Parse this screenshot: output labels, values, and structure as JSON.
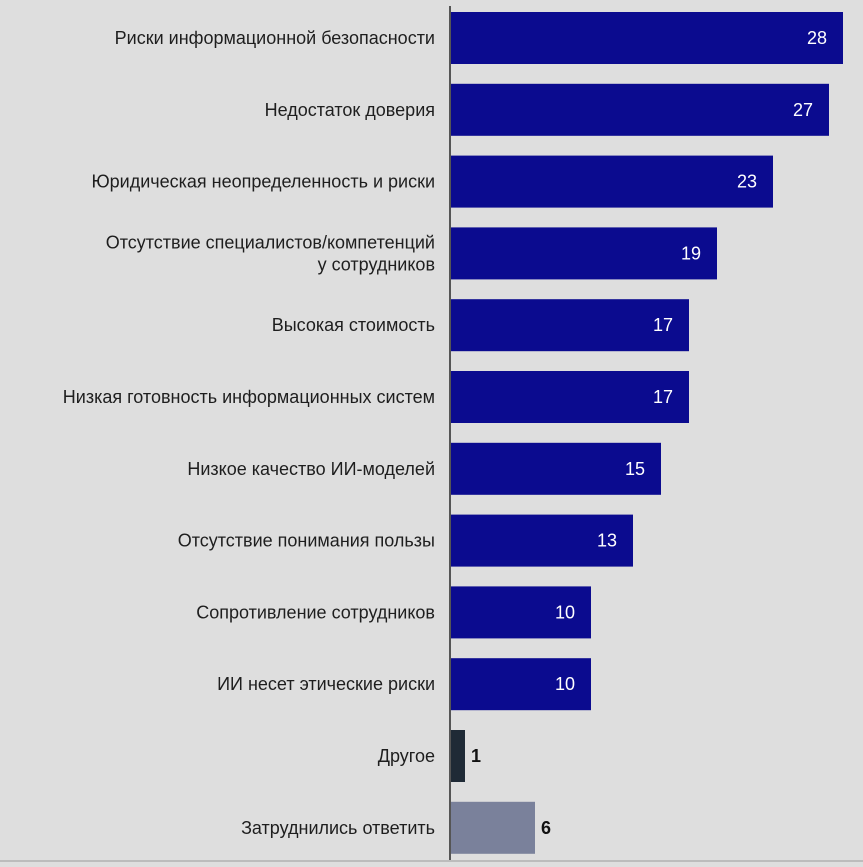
{
  "chart_data": {
    "type": "bar",
    "orientation": "horizontal",
    "categories": [
      [
        "Риски информационной безопасности"
      ],
      [
        "Недостаток доверия"
      ],
      [
        "Юридическая неопределенность и риски"
      ],
      [
        "Отсутствие специалистов/компетенций",
        "у сотрудников"
      ],
      [
        "Высокая стоимость"
      ],
      [
        "Низкая готовность информационных систем"
      ],
      [
        "Низкое качество ИИ-моделей"
      ],
      [
        "Отсутствие понимания пользы"
      ],
      [
        "Сопротивление сотрудников"
      ],
      [
        "ИИ несет этические риски"
      ],
      [
        "Другое"
      ],
      [
        "Затруднились ответить"
      ]
    ],
    "values": [
      28,
      27,
      23,
      19,
      17,
      17,
      15,
      13,
      10,
      10,
      1,
      6
    ],
    "bar_colors": [
      "#0b0b8f",
      "#0b0b8f",
      "#0b0b8f",
      "#0b0b8f",
      "#0b0b8f",
      "#0b0b8f",
      "#0b0b8f",
      "#0b0b8f",
      "#0b0b8f",
      "#0b0b8f",
      "#1f2a36",
      "#7a819b"
    ],
    "label_inside": [
      true,
      true,
      true,
      true,
      true,
      true,
      true,
      true,
      true,
      true,
      false,
      false
    ],
    "xlim": [
      0,
      28
    ],
    "grid": false,
    "legend": "none"
  }
}
